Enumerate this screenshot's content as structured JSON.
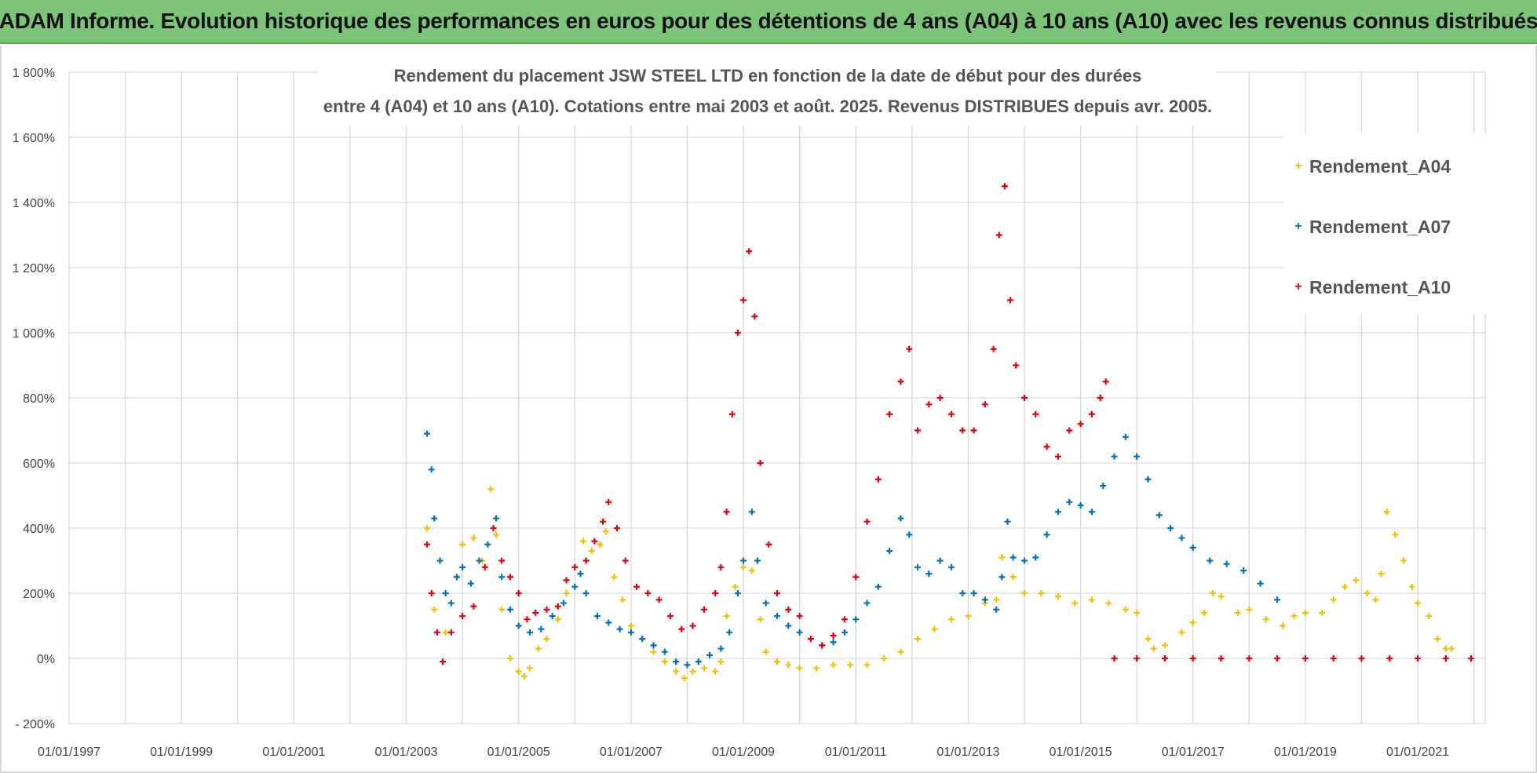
{
  "banner": {
    "title": "ADAM Informe. Evolution historique des performances en euros pour des détentions de 4 ans (A04) à 10 ans (A10) avec les revenus connus distribués"
  },
  "chart_data": {
    "type": "scatter",
    "title_lines": [
      "Rendement du placement JSW STEEL LTD en fonction de la date de début pour des durées",
      "entre 4 (A04) et 10 ans (A10). Cotations entre mai 2003 et août. 2025. Revenus DISTRIBUES depuis avr. 2005."
    ],
    "xlim": [
      1997.0,
      2022.2
    ],
    "ylim": [
      -200,
      1800
    ],
    "xticks": [
      {
        "x": 1997,
        "label": "01/01/1997"
      },
      {
        "x": 1999,
        "label": "01/01/1999"
      },
      {
        "x": 2001,
        "label": "01/01/2001"
      },
      {
        "x": 2003,
        "label": "01/01/2003"
      },
      {
        "x": 2005,
        "label": "01/01/2005"
      },
      {
        "x": 2007,
        "label": "01/01/2007"
      },
      {
        "x": 2009,
        "label": "01/01/2009"
      },
      {
        "x": 2011,
        "label": "01/01/2011"
      },
      {
        "x": 2013,
        "label": "01/01/2013"
      },
      {
        "x": 2015,
        "label": "01/01/2015"
      },
      {
        "x": 2017,
        "label": "01/01/2017"
      },
      {
        "x": 2019,
        "label": "01/01/2019"
      },
      {
        "x": 2021,
        "label": "01/01/2021"
      }
    ],
    "yticks": [
      {
        "y": -200,
        "label": "- 200%"
      },
      {
        "y": 0,
        "label": "0%"
      },
      {
        "y": 200,
        "label": "200%"
      },
      {
        "y": 400,
        "label": "400%"
      },
      {
        "y": 600,
        "label": "600%"
      },
      {
        "y": 800,
        "label": "800%"
      },
      {
        "y": 1000,
        "label": "1 000%"
      },
      {
        "y": 1200,
        "label": "1 200%"
      },
      {
        "y": 1400,
        "label": "1 400%"
      },
      {
        "y": 1600,
        "label": "1 600%"
      },
      {
        "y": 1800,
        "label": "1 800%"
      }
    ],
    "grid": true,
    "legend_position": "top-right",
    "series": [
      {
        "name": "Rendement_A04",
        "color": "#f5c000",
        "points": [
          [
            2003.37,
            400
          ],
          [
            2003.5,
            150
          ],
          [
            2003.7,
            80
          ],
          [
            2003.9,
            250
          ],
          [
            2004.0,
            350
          ],
          [
            2004.2,
            370
          ],
          [
            2004.35,
            300
          ],
          [
            2004.5,
            520
          ],
          [
            2004.6,
            380
          ],
          [
            2004.7,
            150
          ],
          [
            2004.85,
            0
          ],
          [
            2005.0,
            -40
          ],
          [
            2005.1,
            -55
          ],
          [
            2005.2,
            -30
          ],
          [
            2005.35,
            30
          ],
          [
            2005.5,
            60
          ],
          [
            2005.7,
            120
          ],
          [
            2005.85,
            200
          ],
          [
            2006.0,
            280
          ],
          [
            2006.15,
            360
          ],
          [
            2006.3,
            330
          ],
          [
            2006.45,
            350
          ],
          [
            2006.55,
            390
          ],
          [
            2006.7,
            250
          ],
          [
            2006.85,
            180
          ],
          [
            2007.0,
            100
          ],
          [
            2007.2,
            60
          ],
          [
            2007.4,
            20
          ],
          [
            2007.6,
            -10
          ],
          [
            2007.8,
            -40
          ],
          [
            2007.95,
            -60
          ],
          [
            2008.1,
            -40
          ],
          [
            2008.3,
            -30
          ],
          [
            2008.5,
            -40
          ],
          [
            2008.6,
            -10
          ],
          [
            2008.7,
            130
          ],
          [
            2008.85,
            220
          ],
          [
            2009.0,
            280
          ],
          [
            2009.15,
            270
          ],
          [
            2009.3,
            120
          ],
          [
            2009.4,
            20
          ],
          [
            2009.6,
            -10
          ],
          [
            2009.8,
            -20
          ],
          [
            2010.0,
            -30
          ],
          [
            2010.3,
            -30
          ],
          [
            2010.6,
            -20
          ],
          [
            2010.9,
            -20
          ],
          [
            2011.2,
            -20
          ],
          [
            2011.5,
            0
          ],
          [
            2011.8,
            20
          ],
          [
            2012.1,
            60
          ],
          [
            2012.4,
            90
          ],
          [
            2012.7,
            120
          ],
          [
            2013.0,
            130
          ],
          [
            2013.3,
            170
          ],
          [
            2013.5,
            180
          ],
          [
            2013.6,
            310
          ],
          [
            2013.8,
            250
          ],
          [
            2014.0,
            200
          ],
          [
            2014.3,
            200
          ],
          [
            2014.6,
            190
          ],
          [
            2014.9,
            170
          ],
          [
            2015.2,
            180
          ],
          [
            2015.5,
            170
          ],
          [
            2015.8,
            150
          ],
          [
            2016.0,
            140
          ],
          [
            2016.2,
            60
          ],
          [
            2016.3,
            30
          ],
          [
            2016.5,
            40
          ],
          [
            2016.8,
            80
          ],
          [
            2017.0,
            110
          ],
          [
            2017.2,
            140
          ],
          [
            2017.35,
            200
          ],
          [
            2017.5,
            190
          ],
          [
            2017.8,
            140
          ],
          [
            2018.0,
            150
          ],
          [
            2018.3,
            120
          ],
          [
            2018.6,
            100
          ],
          [
            2018.8,
            130
          ],
          [
            2019.0,
            140
          ],
          [
            2019.3,
            140
          ],
          [
            2019.5,
            180
          ],
          [
            2019.7,
            220
          ],
          [
            2019.9,
            240
          ],
          [
            2020.1,
            200
          ],
          [
            2020.25,
            180
          ],
          [
            2020.35,
            260
          ],
          [
            2020.45,
            450
          ],
          [
            2020.6,
            380
          ],
          [
            2020.75,
            300
          ],
          [
            2020.9,
            220
          ],
          [
            2021.0,
            170
          ],
          [
            2021.2,
            130
          ],
          [
            2021.35,
            60
          ],
          [
            2021.5,
            30
          ],
          [
            2021.6,
            30
          ]
        ]
      },
      {
        "name": "Rendement_A07",
        "color": "#0070c0",
        "points": [
          [
            2003.37,
            690
          ],
          [
            2003.45,
            580
          ],
          [
            2003.5,
            430
          ],
          [
            2003.6,
            300
          ],
          [
            2003.7,
            200
          ],
          [
            2003.8,
            170
          ],
          [
            2003.9,
            250
          ],
          [
            2004.0,
            280
          ],
          [
            2004.15,
            230
          ],
          [
            2004.3,
            300
          ],
          [
            2004.45,
            350
          ],
          [
            2004.6,
            430
          ],
          [
            2004.7,
            250
          ],
          [
            2004.85,
            150
          ],
          [
            2005.0,
            100
          ],
          [
            2005.2,
            80
          ],
          [
            2005.4,
            90
          ],
          [
            2005.6,
            130
          ],
          [
            2005.8,
            170
          ],
          [
            2006.0,
            220
          ],
          [
            2006.1,
            260
          ],
          [
            2006.2,
            200
          ],
          [
            2006.4,
            130
          ],
          [
            2006.6,
            110
          ],
          [
            2006.8,
            90
          ],
          [
            2007.0,
            80
          ],
          [
            2007.2,
            60
          ],
          [
            2007.4,
            40
          ],
          [
            2007.6,
            20
          ],
          [
            2007.8,
            -10
          ],
          [
            2008.0,
            -20
          ],
          [
            2008.2,
            -10
          ],
          [
            2008.4,
            10
          ],
          [
            2008.6,
            30
          ],
          [
            2008.75,
            80
          ],
          [
            2008.9,
            200
          ],
          [
            2009.0,
            300
          ],
          [
            2009.15,
            450
          ],
          [
            2009.25,
            300
          ],
          [
            2009.4,
            170
          ],
          [
            2009.6,
            130
          ],
          [
            2009.8,
            100
          ],
          [
            2010.0,
            80
          ],
          [
            2010.2,
            60
          ],
          [
            2010.4,
            40
          ],
          [
            2010.6,
            50
          ],
          [
            2010.8,
            80
          ],
          [
            2011.0,
            120
          ],
          [
            2011.2,
            170
          ],
          [
            2011.4,
            220
          ],
          [
            2011.6,
            330
          ],
          [
            2011.8,
            430
          ],
          [
            2011.95,
            380
          ],
          [
            2012.1,
            280
          ],
          [
            2012.3,
            260
          ],
          [
            2012.5,
            300
          ],
          [
            2012.7,
            280
          ],
          [
            2012.9,
            200
          ],
          [
            2013.1,
            200
          ],
          [
            2013.3,
            180
          ],
          [
            2013.5,
            150
          ],
          [
            2013.6,
            250
          ],
          [
            2013.7,
            420
          ],
          [
            2013.8,
            310
          ],
          [
            2014.0,
            300
          ],
          [
            2014.2,
            310
          ],
          [
            2014.4,
            380
          ],
          [
            2014.6,
            450
          ],
          [
            2014.8,
            480
          ],
          [
            2015.0,
            470
          ],
          [
            2015.2,
            450
          ],
          [
            2015.4,
            530
          ],
          [
            2015.6,
            620
          ],
          [
            2015.8,
            680
          ],
          [
            2016.0,
            620
          ],
          [
            2016.2,
            550
          ],
          [
            2016.4,
            440
          ],
          [
            2016.6,
            400
          ],
          [
            2016.8,
            370
          ],
          [
            2017.0,
            340
          ],
          [
            2017.3,
            300
          ],
          [
            2017.6,
            290
          ],
          [
            2017.9,
            270
          ],
          [
            2018.2,
            230
          ],
          [
            2018.5,
            180
          ]
        ]
      },
      {
        "name": "Rendement_A10",
        "color": "#e8000b",
        "points": [
          [
            2003.37,
            350
          ],
          [
            2003.45,
            200
          ],
          [
            2003.55,
            80
          ],
          [
            2003.65,
            -10
          ],
          [
            2003.8,
            80
          ],
          [
            2004.0,
            130
          ],
          [
            2004.2,
            160
          ],
          [
            2004.4,
            280
          ],
          [
            2004.55,
            400
          ],
          [
            2004.7,
            300
          ],
          [
            2004.85,
            250
          ],
          [
            2005.0,
            200
          ],
          [
            2005.15,
            120
          ],
          [
            2005.3,
            140
          ],
          [
            2005.5,
            150
          ],
          [
            2005.7,
            160
          ],
          [
            2005.85,
            240
          ],
          [
            2006.0,
            280
          ],
          [
            2006.2,
            300
          ],
          [
            2006.35,
            360
          ],
          [
            2006.5,
            420
          ],
          [
            2006.6,
            480
          ],
          [
            2006.75,
            400
          ],
          [
            2006.9,
            300
          ],
          [
            2007.1,
            220
          ],
          [
            2007.3,
            200
          ],
          [
            2007.5,
            180
          ],
          [
            2007.7,
            130
          ],
          [
            2007.9,
            90
          ],
          [
            2008.1,
            100
          ],
          [
            2008.3,
            150
          ],
          [
            2008.5,
            200
          ],
          [
            2008.6,
            280
          ],
          [
            2008.7,
            450
          ],
          [
            2008.8,
            750
          ],
          [
            2008.9,
            1000
          ],
          [
            2009.0,
            1100
          ],
          [
            2009.1,
            1250
          ],
          [
            2009.2,
            1050
          ],
          [
            2009.3,
            600
          ],
          [
            2009.45,
            350
          ],
          [
            2009.6,
            200
          ],
          [
            2009.8,
            150
          ],
          [
            2010.0,
            130
          ],
          [
            2010.2,
            60
          ],
          [
            2010.4,
            40
          ],
          [
            2010.6,
            70
          ],
          [
            2010.8,
            120
          ],
          [
            2011.0,
            250
          ],
          [
            2011.2,
            420
          ],
          [
            2011.4,
            550
          ],
          [
            2011.6,
            750
          ],
          [
            2011.8,
            850
          ],
          [
            2011.95,
            950
          ],
          [
            2012.1,
            700
          ],
          [
            2012.3,
            780
          ],
          [
            2012.5,
            800
          ],
          [
            2012.7,
            750
          ],
          [
            2012.9,
            700
          ],
          [
            2013.1,
            700
          ],
          [
            2013.3,
            780
          ],
          [
            2013.45,
            950
          ],
          [
            2013.55,
            1300
          ],
          [
            2013.65,
            1450
          ],
          [
            2013.75,
            1100
          ],
          [
            2013.85,
            900
          ],
          [
            2014.0,
            800
          ],
          [
            2014.2,
            750
          ],
          [
            2014.4,
            650
          ],
          [
            2014.6,
            620
          ],
          [
            2014.8,
            700
          ],
          [
            2015.0,
            720
          ],
          [
            2015.2,
            750
          ],
          [
            2015.35,
            800
          ],
          [
            2015.45,
            850
          ],
          [
            2015.6,
            0
          ],
          [
            2016.0,
            0
          ],
          [
            2016.5,
            0
          ],
          [
            2017.0,
            0
          ],
          [
            2017.5,
            0
          ],
          [
            2018.0,
            0
          ],
          [
            2018.5,
            0
          ],
          [
            2019.0,
            0
          ],
          [
            2019.5,
            0
          ],
          [
            2020.0,
            0
          ],
          [
            2020.5,
            0
          ],
          [
            2021.0,
            0
          ],
          [
            2021.5,
            0
          ],
          [
            2021.95,
            0
          ]
        ]
      }
    ]
  }
}
